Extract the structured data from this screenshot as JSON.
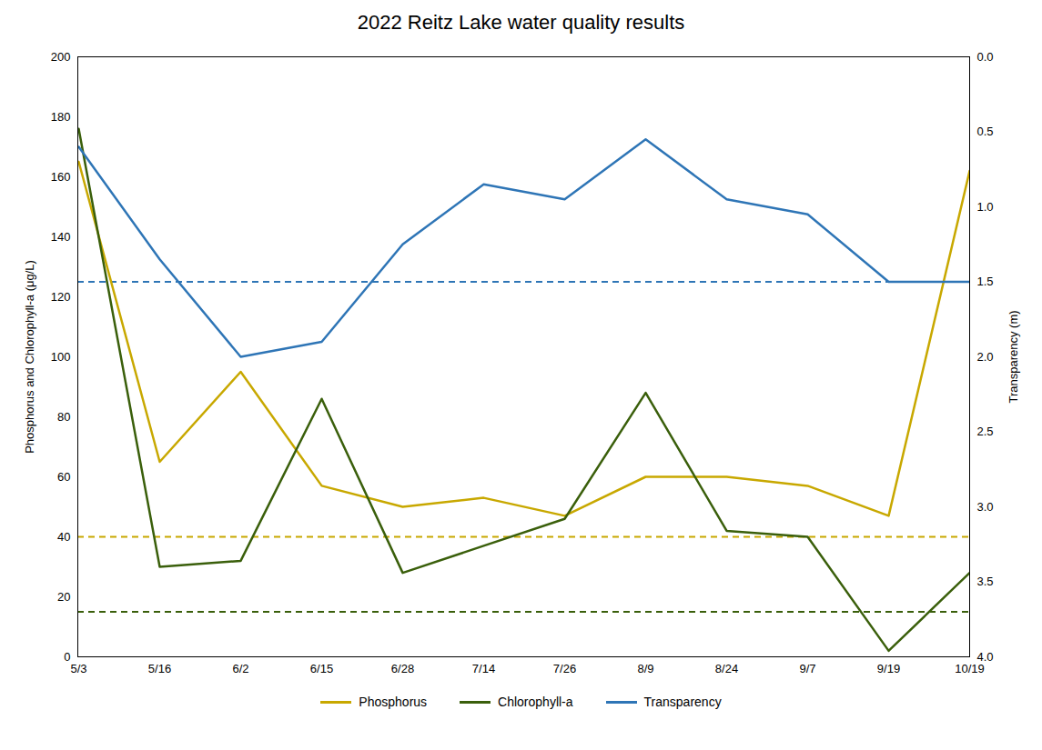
{
  "chart_data": {
    "type": "line",
    "title": "2022 Reitz Lake water quality results",
    "categories": [
      "5/3",
      "5/16",
      "6/2",
      "6/15",
      "6/28",
      "7/14",
      "7/26",
      "8/9",
      "8/24",
      "9/7",
      "9/19",
      "10/19"
    ],
    "series": [
      {
        "name": "Phosphorus",
        "color": "#C8A800",
        "values": [
          165,
          65,
          95,
          57,
          50,
          53,
          47,
          60,
          60,
          57,
          47,
          162
        ],
        "threshold": 40
      },
      {
        "name": "Chlorophyll-a",
        "color": "#3A5F0B",
        "values": [
          176,
          30,
          32,
          86,
          28,
          37,
          46,
          88,
          42,
          40,
          2,
          28
        ],
        "threshold": 15
      },
      {
        "name": "Transparency",
        "color": "#2E75B6",
        "axis": "y2",
        "values": [
          0.6,
          1.35,
          2.0,
          1.9,
          1.25,
          0.85,
          0.95,
          0.55,
          0.95,
          1.05,
          1.5,
          1.5
        ],
        "threshold": 1.5
      }
    ],
    "ylabel": "Phosphorus and Chlorophyll-a (μg/L)",
    "y2label": "Transparency (m)",
    "ylim": [
      0,
      200
    ],
    "yticks": [
      0,
      20,
      40,
      60,
      80,
      100,
      120,
      140,
      160,
      180,
      200
    ],
    "y2lim": [
      4.0,
      0.0
    ],
    "y2ticks": [
      {
        "value": 0,
        "label": "0.0"
      },
      0.5,
      {
        "value": 1,
        "label": "1.0"
      },
      1.5,
      {
        "value": 2,
        "label": "2.0"
      },
      2.5,
      {
        "value": 3,
        "label": "3.0"
      },
      3.5,
      {
        "value": 4,
        "label": "4.0"
      }
    ],
    "grid": false,
    "legend": "bottom"
  }
}
